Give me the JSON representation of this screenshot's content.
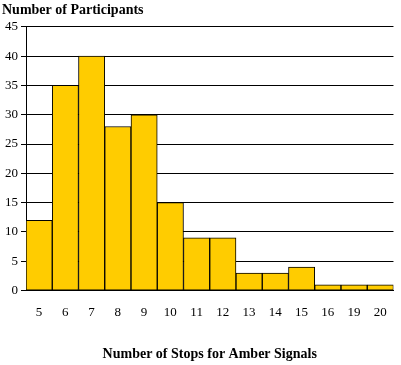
{
  "chart_data": {
    "type": "bar",
    "y_label": "Number of Participants",
    "x_label": "Number of Stops for Amber Signals",
    "categories": [
      "5",
      "6",
      "7",
      "8",
      "9",
      "10",
      "11",
      "12",
      "13",
      "14",
      "15",
      "16",
      "19",
      "20"
    ],
    "values": [
      12,
      35,
      40,
      28,
      30,
      15,
      9,
      9,
      3,
      3,
      4,
      1,
      1,
      1
    ],
    "color": "#ffcc00",
    "ylim": [
      0,
      45
    ],
    "yticks": [
      0,
      5,
      10,
      15,
      20,
      25,
      30,
      35,
      40,
      45
    ],
    "grid": true
  }
}
